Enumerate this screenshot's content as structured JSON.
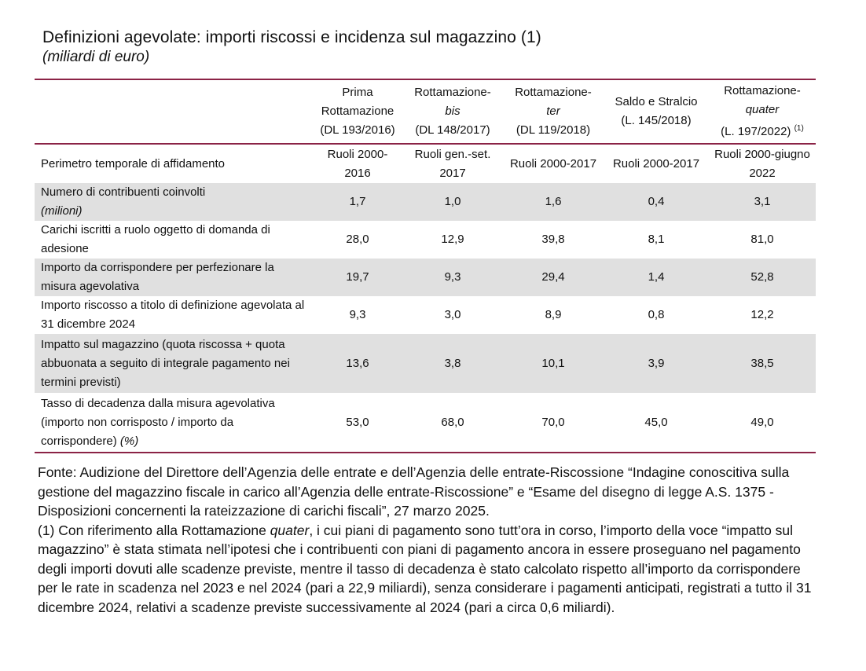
{
  "title": "Definizioni agevolate: importi riscossi e incidenza sul magazzino (1)",
  "subtitle": "(miliardi di euro)",
  "columns": [
    {
      "l1": "Prima",
      "l2": "Rottamazione",
      "l3": "(DL 193/2016)",
      "sup": ""
    },
    {
      "l1": "Rottamazione-",
      "l2": "bis",
      "l3": "(DL 148/2017)",
      "sup": ""
    },
    {
      "l1": "Rottamazione-",
      "l2": "ter",
      "l3": "(DL 119/2018)",
      "sup": ""
    },
    {
      "l1": "Saldo e Stralcio",
      "l2": "(L. 145/2018)",
      "l3": "",
      "sup": ""
    },
    {
      "l1": "Rottamazione-",
      "l2": "quater",
      "l3": "(L. 197/2022)",
      "sup": "(1)"
    }
  ],
  "rows": [
    {
      "label": "Perimetro temporale di affidamento",
      "label_it": "",
      "values": [
        "Ruoli 2000-2016",
        "Ruoli gen.-set. 2017",
        "Ruoli 2000-2017",
        "Ruoli 2000-2017",
        "Ruoli 2000-giugno 2022"
      ]
    },
    {
      "label": "Numero di contribuenti coinvolti",
      "label_it": "(milioni)",
      "values": [
        "1,7",
        "1,0",
        "1,6",
        "0,4",
        "3,1"
      ]
    },
    {
      "label": "Carichi iscritti a ruolo oggetto di domanda di adesione",
      "label_it": "",
      "values": [
        "28,0",
        "12,9",
        "39,8",
        "8,1",
        "81,0"
      ]
    },
    {
      "label": "Importo da corrispondere per perfezionare la misura agevolativa",
      "label_it": "",
      "values": [
        "19,7",
        "9,3",
        "29,4",
        "1,4",
        "52,8"
      ]
    },
    {
      "label": "Importo riscosso a titolo di definizione agevolata al 31 dicembre 2024",
      "label_it": "",
      "values": [
        "9,3",
        "3,0",
        "8,9",
        "0,8",
        "12,2"
      ]
    },
    {
      "label": "Impatto sul magazzino (quota riscossa + quota abbuonata a seguito di integrale pagamento nei termini previsti)",
      "label_it": "",
      "values": [
        "13,6",
        "3,8",
        "10,1",
        "3,9",
        "38,5"
      ]
    },
    {
      "label": "Tasso di decadenza dalla misura agevolativa (importo non corrisposto / importo da corrispondere)",
      "label_it": "(%)",
      "values": [
        "53,0",
        "68,0",
        "70,0",
        "45,0",
        "49,0"
      ]
    }
  ],
  "notes": {
    "source": "Fonte: Audizione del Direttore dell’Agenzia delle entrate e dell’Agenzia delle entrate-Riscossione “Indagine conoscitiva sulla gestione del magazzino fiscale in carico all’Agenzia delle entrate-Riscossione” e “Esame del disegno di legge A.S. 1375 - Disposizioni concernenti la rateizzazione di carichi fiscali”, 27 marzo 2025.",
    "n1_a": "(1) Con riferimento alla Rottamazione ",
    "n1_it": "quater",
    "n1_b": ", i cui piani di pagamento sono tutt’ora in corso, l’importo della voce “impatto sul magazzino” è stata stimata nell’ipotesi che i contribuenti con piani di pagamento ancora in essere proseguano nel pagamento degli importi dovuti alle scadenze previste, mentre il tasso di decadenza è stato calcolato rispetto all’importo da corrispondere per le rate in scadenza nel 2023 e nel 2024 (pari a 22,9 miliardi), senza considerare i pagamenti anticipati, registrati a tutto il 31 dicembre 2024, relativi a scadenze previste successivamente al 2024 (pari a circa 0,6 miliardi)."
  }
}
